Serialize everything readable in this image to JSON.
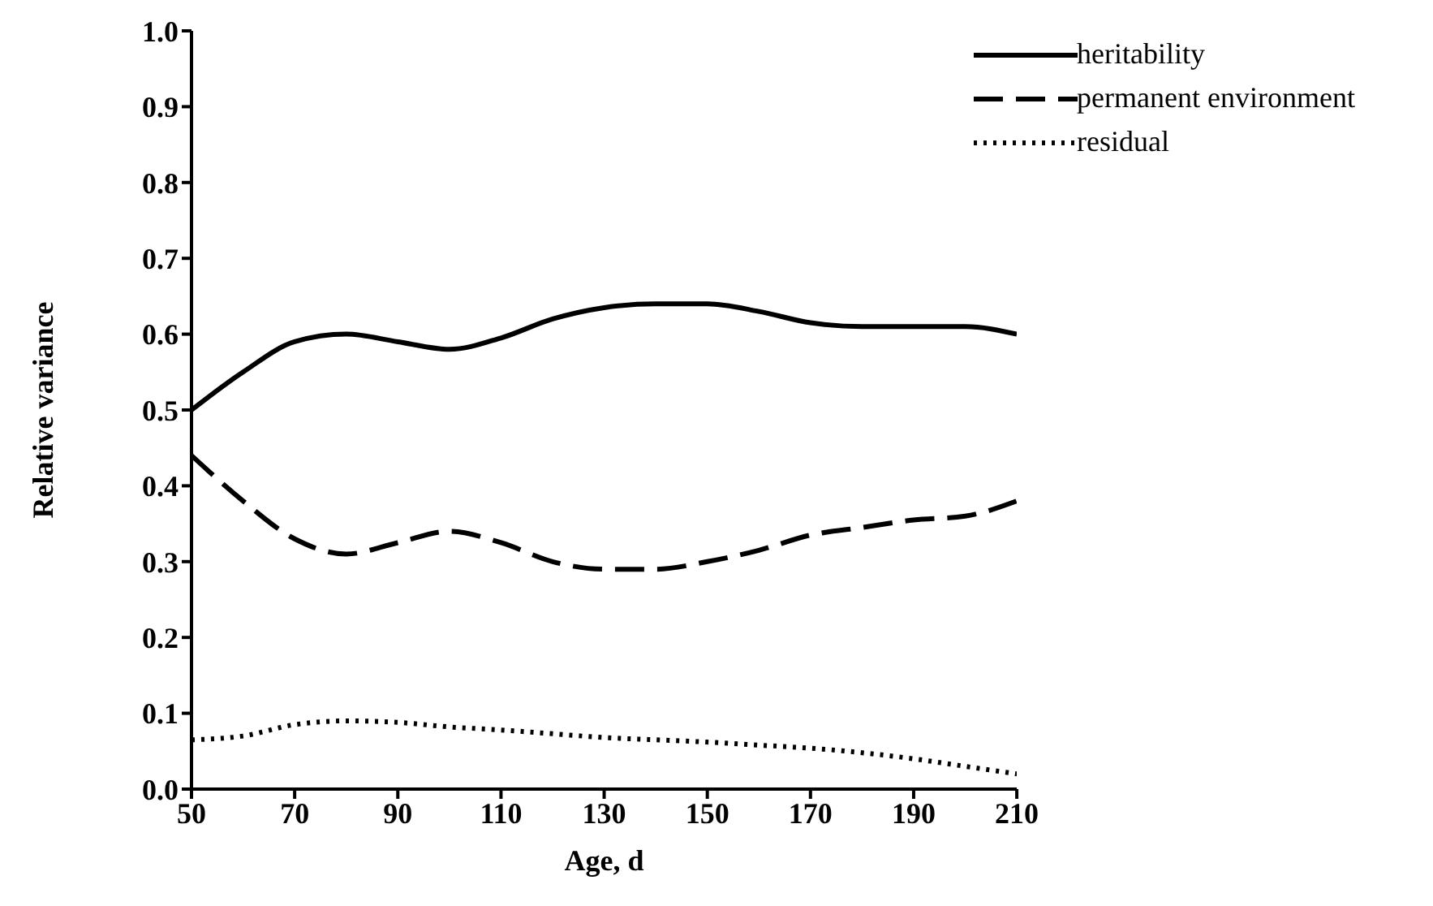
{
  "chart_data": {
    "type": "line",
    "xlabel": "Age, d",
    "ylabel": "Relative variance",
    "x": [
      50,
      60,
      70,
      80,
      90,
      100,
      110,
      120,
      130,
      140,
      150,
      160,
      170,
      180,
      190,
      200,
      210
    ],
    "series": [
      {
        "name": "heritability",
        "color": "#000000",
        "line_style": "solid",
        "values": [
          0.5,
          0.55,
          0.59,
          0.6,
          0.59,
          0.58,
          0.595,
          0.62,
          0.635,
          0.64,
          0.64,
          0.63,
          0.615,
          0.61,
          0.61,
          0.61,
          0.6
        ]
      },
      {
        "name": "permanent environment",
        "color": "#000000",
        "line_style": "dashed",
        "values": [
          0.44,
          0.38,
          0.33,
          0.31,
          0.325,
          0.34,
          0.325,
          0.3,
          0.29,
          0.29,
          0.3,
          0.315,
          0.335,
          0.345,
          0.355,
          0.36,
          0.38
        ]
      },
      {
        "name": "residual",
        "color": "#000000",
        "line_style": "dotted",
        "values": [
          0.065,
          0.07,
          0.085,
          0.09,
          0.088,
          0.082,
          0.078,
          0.073,
          0.068,
          0.065,
          0.062,
          0.058,
          0.054,
          0.048,
          0.04,
          0.03,
          0.02
        ]
      }
    ],
    "xlim": [
      50,
      210
    ],
    "xticks": [
      50,
      70,
      90,
      110,
      130,
      150,
      170,
      190,
      210
    ],
    "ylim": [
      0,
      1
    ],
    "yticks": [
      {
        "value": 0,
        "label": "0.0"
      },
      0.1,
      0.2,
      0.3,
      0.4,
      0.5,
      0.6,
      0.7,
      0.8,
      0.9,
      {
        "value": 1,
        "label": "1.0"
      }
    ],
    "grid": false,
    "legend": "top right",
    "marker": "none"
  }
}
